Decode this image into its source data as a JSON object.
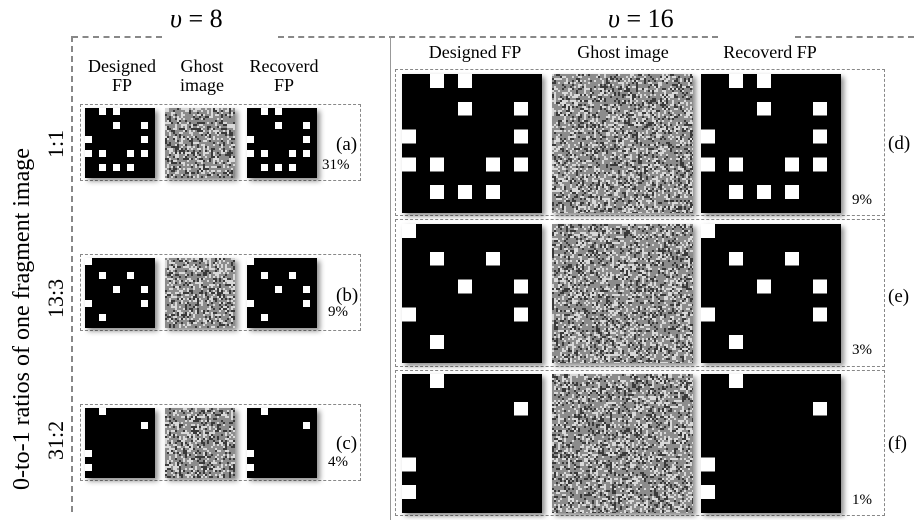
{
  "left_panel": {
    "title_var": "υ",
    "title_rest": " = 8",
    "col_designed": [
      "Designed",
      "FP"
    ],
    "col_ghost": [
      "Ghost",
      "image"
    ],
    "col_recovered": [
      "Recoverd",
      "FP"
    ]
  },
  "right_panel": {
    "title_var": "υ",
    "title_rest": " = 16",
    "col_designed": "Designed FP",
    "col_ghost": "Ghost image",
    "col_recovered": "Recoverd FP"
  },
  "side_label": "0-to-1 ratios of one fragment image",
  "ratios": [
    "1:1",
    "13:3",
    "31:2"
  ],
  "rows_left": [
    {
      "label": "(a)",
      "percent": "31%"
    },
    {
      "label": "(b)",
      "percent": "9%"
    },
    {
      "label": "(c)",
      "percent": "4%"
    }
  ],
  "rows_right": [
    {
      "label": "(d)",
      "percent": "9%"
    },
    {
      "label": "(e)",
      "percent": "3%"
    },
    {
      "label": "(f)",
      "percent": "1%"
    }
  ],
  "patterns": {
    "p1": [
      "01100",
      "00101",
      "10001",
      "11011",
      "01110"
    ],
    "p2": [
      "10000",
      "01010",
      "00101",
      "10001",
      "01000"
    ],
    "p3": [
      "01000",
      "00001",
      "00000",
      "10000",
      "10000"
    ]
  },
  "colors": {
    "dash": "#888888",
    "black": "#000000",
    "white": "#ffffff"
  }
}
